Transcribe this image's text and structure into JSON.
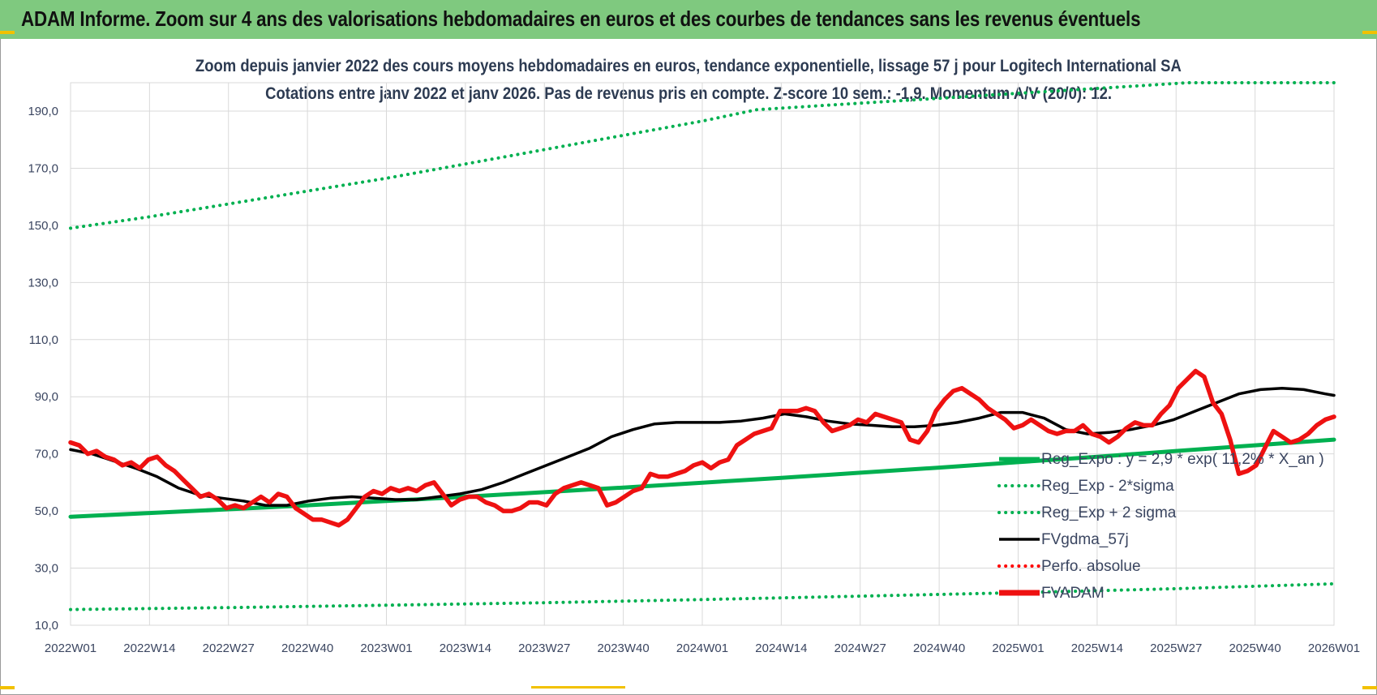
{
  "banner": {
    "title": "ADAM Informe. Zoom sur 4 ans des valorisations hebdomadaires en euros et des courbes de tendances sans les revenus éventuels",
    "color": "#7fc97f"
  },
  "chart_data": {
    "type": "line",
    "title": "Zoom depuis janvier 2022 des cours moyens hebdomadaires en euros, tendance exponentielle, lissage 57 j pour Logitech International SA",
    "subtitle": "Cotations entre janv 2022 et janv 2026. Pas de revenus pris en compte. Z-score 10 sem.: -1,9. Momentum A/V (20/0): 12.",
    "xlabel": "",
    "ylabel": "",
    "ylim": [
      10,
      200
    ],
    "yticks": [
      "190,0",
      "170,0",
      "150,0",
      "130,0",
      "110,0",
      "90,0",
      "70,0",
      "50,0",
      "30,0",
      "10,0"
    ],
    "ytick_values": [
      190,
      170,
      150,
      130,
      110,
      90,
      70,
      50,
      30,
      10
    ],
    "xticks": [
      "2022W01",
      "2022W14",
      "2022W27",
      "2022W40",
      "2023W01",
      "2023W14",
      "2023W27",
      "2023W40",
      "2024W01",
      "2024W14",
      "2024W27",
      "2024W40",
      "2025W01",
      "2025W14",
      "2025W27",
      "2025W40",
      "2026W01"
    ],
    "grid": true,
    "legend_position": "bottom-right",
    "series": [
      {
        "name": "Reg_Expo : y = 2,9 * exp( 11,2% *  X_an )",
        "style": "solid-thick",
        "color": "#00b050",
        "points": [
          [
            0,
            48
          ],
          [
            13,
            49.3
          ],
          [
            26,
            50.6
          ],
          [
            39,
            52
          ],
          [
            52,
            53.5
          ],
          [
            65,
            55
          ],
          [
            78,
            56.6
          ],
          [
            91,
            58.2
          ],
          [
            104,
            59.9
          ],
          [
            117,
            61.6
          ],
          [
            130,
            63.4
          ],
          [
            143,
            65.2
          ],
          [
            156,
            67.1
          ],
          [
            169,
            69
          ],
          [
            182,
            71
          ],
          [
            195,
            73
          ],
          [
            208,
            75
          ]
        ]
      },
      {
        "name": "Reg_Exp - 2*sigma",
        "style": "dotted",
        "color": "#00b050",
        "points": [
          [
            0,
            15.5
          ],
          [
            26,
            16.2
          ],
          [
            52,
            17
          ],
          [
            78,
            17.9
          ],
          [
            104,
            19
          ],
          [
            130,
            20.2
          ],
          [
            156,
            21.4
          ],
          [
            182,
            22.8
          ],
          [
            208,
            24.5
          ]
        ]
      },
      {
        "name": "Reg_Exp + 2 sigma",
        "style": "dotted",
        "color": "#00b050",
        "points": [
          [
            0,
            149
          ],
          [
            13,
            153
          ],
          [
            26,
            157.5
          ],
          [
            39,
            162
          ],
          [
            52,
            166.5
          ],
          [
            65,
            171.5
          ],
          [
            78,
            176.5
          ],
          [
            91,
            181.5
          ],
          [
            104,
            186.5
          ],
          [
            113,
            190.5
          ],
          [
            184,
            200
          ],
          [
            208,
            200
          ]
        ]
      },
      {
        "name": "FVgdma_57j",
        "style": "solid",
        "color": "#000000",
        "points": [
          [
            0,
            71.5
          ],
          [
            5,
            70
          ],
          [
            10,
            67.5
          ],
          [
            15,
            65
          ],
          [
            20,
            62
          ],
          [
            25,
            58
          ],
          [
            30,
            55.5
          ],
          [
            35,
            54.5
          ],
          [
            40,
            53.5
          ],
          [
            45,
            52
          ],
          [
            50,
            52
          ],
          [
            55,
            53.5
          ],
          [
            60,
            54.5
          ],
          [
            65,
            55
          ],
          [
            70,
            54.5
          ],
          [
            75,
            54
          ],
          [
            80,
            54
          ],
          [
            85,
            55
          ],
          [
            90,
            56
          ],
          [
            95,
            57.5
          ],
          [
            100,
            60
          ],
          [
            105,
            63
          ],
          [
            110,
            66
          ],
          [
            115,
            69
          ],
          [
            120,
            72
          ],
          [
            125,
            76
          ],
          [
            130,
            78.5
          ],
          [
            135,
            80.5
          ],
          [
            140,
            81
          ],
          [
            145,
            81
          ],
          [
            150,
            81
          ],
          [
            155,
            81.5
          ],
          [
            160,
            82.5
          ],
          [
            165,
            84
          ],
          [
            170,
            83
          ],
          [
            175,
            81.5
          ],
          [
            180,
            80.5
          ],
          [
            185,
            80
          ],
          [
            190,
            79.5
          ],
          [
            195,
            79.5
          ],
          [
            200,
            80
          ],
          [
            205,
            81
          ],
          [
            210,
            82.5
          ],
          [
            215,
            84.5
          ],
          [
            220,
            84.5
          ],
          [
            225,
            82.5
          ],
          [
            230,
            78.5
          ],
          [
            235,
            77
          ],
          [
            240,
            77.5
          ],
          [
            245,
            78.5
          ],
          [
            250,
            80
          ],
          [
            255,
            82
          ],
          [
            260,
            85
          ],
          [
            265,
            88
          ],
          [
            270,
            91
          ],
          [
            275,
            92.5
          ],
          [
            280,
            93
          ],
          [
            285,
            92.5
          ],
          [
            290,
            91
          ],
          [
            292,
            90.5
          ]
        ]
      },
      {
        "name": "Perfo. absolue",
        "style": "dotted",
        "color": "#ff0000",
        "points": []
      },
      {
        "name": "FVADAM",
        "style": "solid-thick",
        "color": "#ee1111",
        "points": [
          [
            0,
            74
          ],
          [
            2,
            73
          ],
          [
            4,
            70
          ],
          [
            6,
            71
          ],
          [
            8,
            69
          ],
          [
            10,
            68
          ],
          [
            12,
            66
          ],
          [
            14,
            67
          ],
          [
            16,
            65
          ],
          [
            18,
            68
          ],
          [
            20,
            69
          ],
          [
            22,
            66
          ],
          [
            24,
            64
          ],
          [
            26,
            61
          ],
          [
            28,
            58
          ],
          [
            30,
            55
          ],
          [
            32,
            56
          ],
          [
            34,
            54
          ],
          [
            36,
            51
          ],
          [
            38,
            52
          ],
          [
            40,
            51
          ],
          [
            42,
            53
          ],
          [
            44,
            55
          ],
          [
            46,
            53
          ],
          [
            48,
            56
          ],
          [
            50,
            55
          ],
          [
            52,
            51
          ],
          [
            54,
            49
          ],
          [
            56,
            47
          ],
          [
            58,
            47
          ],
          [
            60,
            46
          ],
          [
            62,
            45
          ],
          [
            64,
            47
          ],
          [
            66,
            51
          ],
          [
            68,
            55
          ],
          [
            70,
            57
          ],
          [
            72,
            56
          ],
          [
            74,
            58
          ],
          [
            76,
            57
          ],
          [
            78,
            58
          ],
          [
            80,
            57
          ],
          [
            82,
            59
          ],
          [
            84,
            60
          ],
          [
            86,
            56
          ],
          [
            88,
            52
          ],
          [
            90,
            54
          ],
          [
            92,
            55
          ],
          [
            94,
            55
          ],
          [
            96,
            53
          ],
          [
            98,
            52
          ],
          [
            100,
            50
          ],
          [
            102,
            50
          ],
          [
            104,
            51
          ],
          [
            106,
            53
          ],
          [
            108,
            53
          ],
          [
            110,
            52
          ],
          [
            112,
            56
          ],
          [
            114,
            58
          ],
          [
            116,
            59
          ],
          [
            118,
            60
          ],
          [
            120,
            59
          ],
          [
            122,
            58
          ],
          [
            124,
            52
          ],
          [
            126,
            53
          ],
          [
            128,
            55
          ],
          [
            130,
            57
          ],
          [
            132,
            58
          ],
          [
            134,
            63
          ],
          [
            136,
            62
          ],
          [
            138,
            62
          ],
          [
            140,
            63
          ],
          [
            142,
            64
          ],
          [
            144,
            66
          ],
          [
            146,
            67
          ],
          [
            148,
            65
          ],
          [
            150,
            67
          ],
          [
            152,
            68
          ],
          [
            154,
            73
          ],
          [
            156,
            75
          ],
          [
            158,
            77
          ],
          [
            160,
            78
          ],
          [
            162,
            79
          ],
          [
            164,
            85
          ],
          [
            166,
            85
          ],
          [
            168,
            85
          ],
          [
            170,
            86
          ],
          [
            172,
            85
          ],
          [
            174,
            81
          ],
          [
            176,
            78
          ],
          [
            178,
            79
          ],
          [
            180,
            80
          ],
          [
            182,
            82
          ],
          [
            184,
            81
          ],
          [
            186,
            84
          ],
          [
            188,
            83
          ],
          [
            190,
            82
          ],
          [
            192,
            81
          ],
          [
            194,
            75
          ],
          [
            196,
            74
          ],
          [
            198,
            78
          ],
          [
            200,
            85
          ],
          [
            202,
            89
          ],
          [
            204,
            92
          ],
          [
            206,
            93
          ],
          [
            208,
            91
          ],
          [
            210,
            89
          ],
          [
            212,
            86
          ],
          [
            214,
            84
          ],
          [
            216,
            82
          ],
          [
            218,
            79
          ],
          [
            220,
            80
          ],
          [
            222,
            82
          ],
          [
            224,
            80
          ],
          [
            226,
            78
          ],
          [
            228,
            77
          ],
          [
            230,
            78
          ],
          [
            232,
            78
          ],
          [
            234,
            80
          ],
          [
            236,
            77
          ],
          [
            238,
            76
          ],
          [
            240,
            74
          ],
          [
            242,
            76
          ],
          [
            244,
            79
          ],
          [
            246,
            81
          ],
          [
            248,
            80
          ],
          [
            250,
            80
          ],
          [
            252,
            84
          ],
          [
            254,
            87
          ],
          [
            256,
            93
          ],
          [
            258,
            96
          ],
          [
            260,
            99
          ],
          [
            262,
            97
          ],
          [
            264,
            88
          ],
          [
            266,
            84
          ],
          [
            268,
            75
          ],
          [
            270,
            63
          ],
          [
            272,
            64
          ],
          [
            274,
            66
          ],
          [
            276,
            72
          ],
          [
            278,
            78
          ],
          [
            280,
            76
          ],
          [
            282,
            74
          ],
          [
            284,
            75
          ],
          [
            286,
            77
          ],
          [
            288,
            80
          ],
          [
            290,
            82
          ],
          [
            292,
            83
          ]
        ]
      }
    ]
  }
}
